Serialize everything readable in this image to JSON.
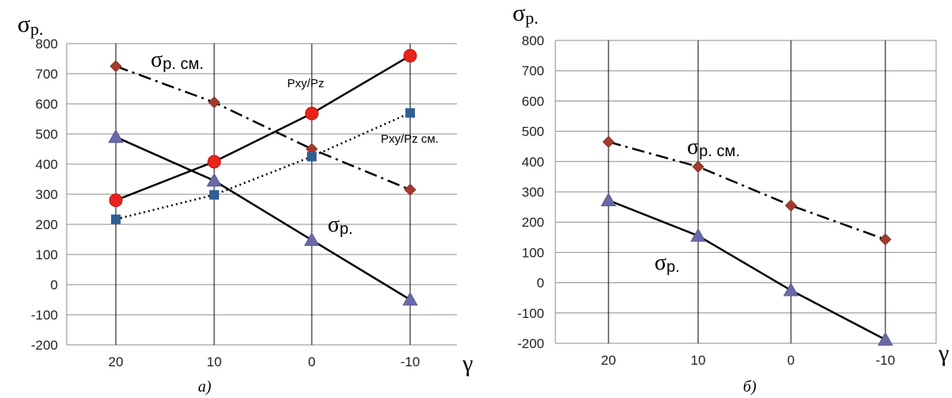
{
  "chart_data": [
    {
      "type": "line",
      "panel_caption": "а)",
      "ylabel": "σр.",
      "xlabel": "γ",
      "x": [
        "20",
        "10",
        "0",
        "-10"
      ],
      "ylim": [
        -200,
        800
      ],
      "yticks": [
        -200,
        -100,
        0,
        100,
        200,
        300,
        400,
        500,
        600,
        700,
        800
      ],
      "grid": "vertical",
      "series": [
        {
          "name": "σр. см.",
          "values": [
            725,
            605,
            450,
            315
          ],
          "marker": "diamond",
          "color": "#a23b2e",
          "line": "dash-dot"
        },
        {
          "name": "Pxy/Pz",
          "values": [
            280,
            408,
            568,
            760
          ],
          "marker": "circle",
          "color": "#e8231c",
          "line": "solid"
        },
        {
          "name": "Pxy/Pz см.",
          "values": [
            217,
            298,
            425,
            570
          ],
          "marker": "square",
          "color": "#2f5f95",
          "line": "dotted"
        },
        {
          "name": "σр.",
          "values": [
            490,
            345,
            148,
            -50
          ],
          "marker": "triangle",
          "color": "#6a6aa8",
          "line": "solid"
        }
      ]
    },
    {
      "type": "line",
      "panel_caption": "б)",
      "ylabel": "σр.",
      "xlabel": "γ",
      "x": [
        "20",
        "10",
        "0",
        "-10"
      ],
      "ylim": [
        -200,
        800
      ],
      "yticks": [
        -200,
        -100,
        0,
        100,
        200,
        300,
        400,
        500,
        600,
        700,
        800
      ],
      "grid": "both",
      "series": [
        {
          "name": "σр. см.",
          "values": [
            465,
            383,
            255,
            143
          ],
          "marker": "diamond",
          "color": "#a23b2e",
          "line": "dash-dot"
        },
        {
          "name": "σр.",
          "values": [
            272,
            155,
            -25,
            -188
          ],
          "marker": "triangle",
          "color": "#6a6aa8",
          "line": "solid"
        }
      ]
    }
  ]
}
